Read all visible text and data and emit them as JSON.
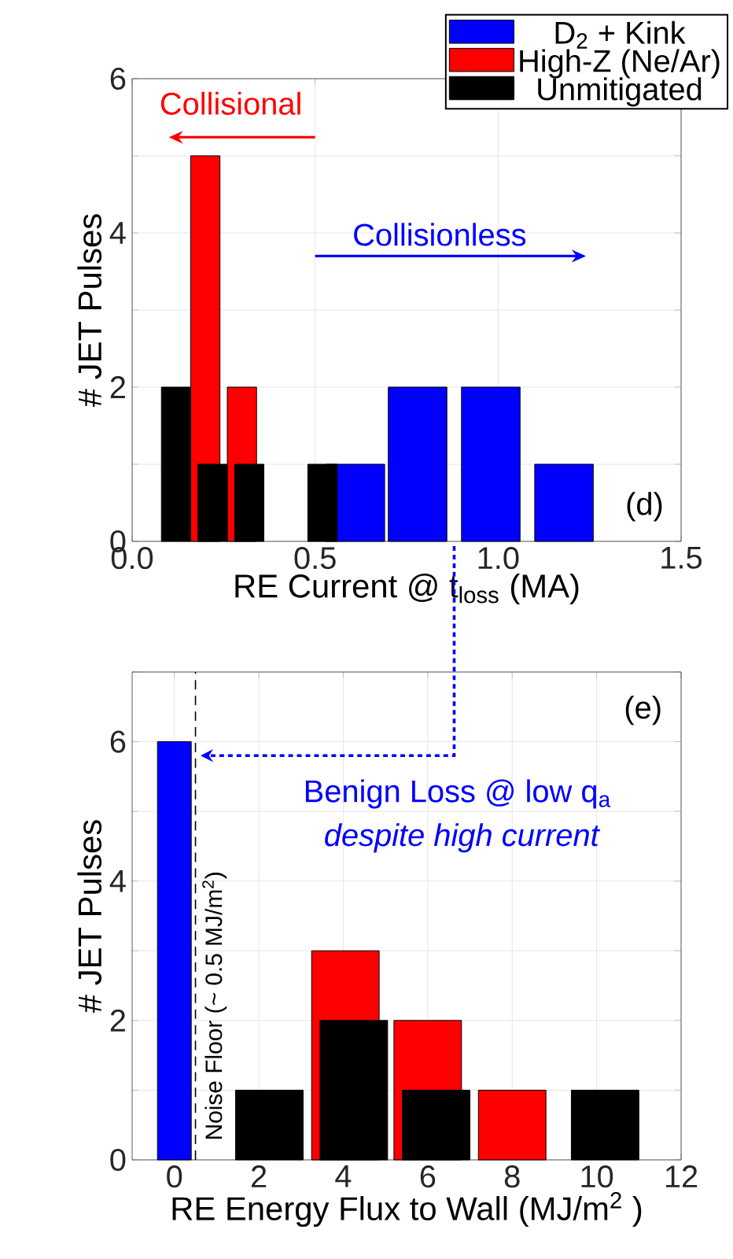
{
  "chart_data": [
    {
      "type": "bar",
      "xlabel": "RE Current @ t$_{loss}$ (MA)",
      "ylabel": "# JET Pulses",
      "xlim": [
        0,
        1.5
      ],
      "xticks": [
        {
          "value": 0,
          "label": "0.0"
        },
        0.5,
        {
          "value": 1,
          "label": "1.0"
        },
        1.5
      ],
      "ylim": [
        0,
        6
      ],
      "yticks": [
        0,
        {
          "value": 1,
          "label": null
        },
        2,
        {
          "value": 3,
          "label": null
        },
        4,
        {
          "value": 5,
          "label": null
        },
        6
      ],
      "grid": true,
      "legend": "top right",
      "series": [
        {
          "name": "D$_{2}$ + Kink",
          "color": "#0000ff",
          "x": [
            0.61,
            0.78,
            0.98,
            1.18
          ],
          "values": [
            1,
            2,
            2,
            1
          ]
        },
        {
          "name": "High-Z (Ne/Ar)",
          "color": "#ff0000",
          "x": [
            0.2,
            0.3
          ],
          "values": [
            5,
            2
          ]
        },
        {
          "name": "Unmitigated",
          "color": "#000000",
          "x": [
            0.12,
            0.22,
            0.32,
            0.52
          ],
          "values": [
            2,
            1,
            1,
            1
          ]
        }
      ],
      "annotations": [
        "Collisional",
        "Collisionless",
        "(d)"
      ]
    },
    {
      "type": "bar",
      "xlabel": "RE Energy Flux to Wall (MJ/m$^{2}$ )",
      "ylabel": "# JET Pulses",
      "xlim": [
        -1,
        12
      ],
      "xticks": [
        0,
        2,
        4,
        6,
        8,
        10,
        12
      ],
      "ylim": [
        0,
        7
      ],
      "yticks": [
        0,
        {
          "value": 1,
          "label": null
        },
        2,
        {
          "value": 3,
          "label": null
        },
        4,
        {
          "value": 5,
          "label": null
        },
        6,
        {
          "value": 7,
          "label": null
        }
      ],
      "grid": true,
      "series": [
        {
          "color": "#0000ff",
          "x": [
            0
          ],
          "values": [
            6
          ]
        },
        {
          "color": "#ff0000",
          "x": [
            4.05,
            6.0,
            8.0
          ],
          "values": [
            3,
            2,
            1
          ]
        },
        {
          "color": "#000000",
          "x": [
            2.25,
            4.25,
            6.2,
            10.2
          ],
          "values": [
            1,
            2,
            1,
            1
          ]
        }
      ],
      "ref_lines": [
        {
          "axis": "x",
          "value": 0.5,
          "label": "Noise Floor (~ 0.5 MJ/m$^{2}$)",
          "color": "#000000",
          "line_style": "dashed"
        }
      ],
      "annotations": [
        "(e)",
        "Benign Loss @ low q$_{a}$",
        "despite high current"
      ]
    }
  ]
}
